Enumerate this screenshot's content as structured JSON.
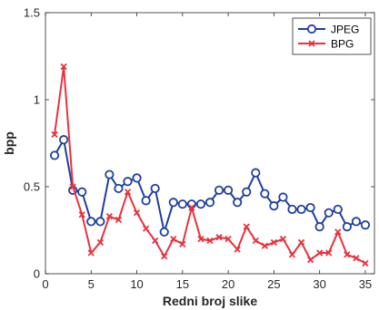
{
  "chart_data": {
    "type": "line",
    "xlabel": "Redni broj slike",
    "ylabel": "bpp",
    "xlim": [
      0,
      36
    ],
    "ylim": [
      0,
      1.5
    ],
    "x_ticks": [
      0,
      5,
      10,
      15,
      20,
      25,
      30,
      35
    ],
    "y_ticks": [
      0,
      0.5,
      1,
      1.5
    ],
    "y_tick_labels": [
      "0",
      "0.5",
      "1",
      "1.5"
    ],
    "grid": false,
    "legend_position": "top-right",
    "x": [
      1,
      2,
      3,
      4,
      5,
      6,
      7,
      8,
      9,
      10,
      11,
      12,
      13,
      14,
      15,
      16,
      17,
      18,
      19,
      20,
      21,
      22,
      23,
      24,
      25,
      26,
      27,
      28,
      29,
      30,
      31,
      32,
      33,
      34,
      35
    ],
    "series": [
      {
        "name": "JPEG",
        "color": "#1f3f9f",
        "marker": "circle",
        "values": [
          0.68,
          0.77,
          0.48,
          0.47,
          0.3,
          0.3,
          0.57,
          0.49,
          0.53,
          0.55,
          0.42,
          0.49,
          0.24,
          0.41,
          0.4,
          0.4,
          0.4,
          0.41,
          0.48,
          0.48,
          0.41,
          0.47,
          0.58,
          0.46,
          0.39,
          0.44,
          0.37,
          0.37,
          0.38,
          0.27,
          0.35,
          0.37,
          0.27,
          0.3,
          0.28
        ]
      },
      {
        "name": "BPG",
        "color": "#e8323c",
        "marker": "x",
        "values": [
          0.8,
          1.19,
          0.5,
          0.34,
          0.12,
          0.18,
          0.33,
          0.31,
          0.47,
          0.35,
          0.26,
          0.19,
          0.1,
          0.2,
          0.17,
          0.38,
          0.2,
          0.19,
          0.21,
          0.2,
          0.14,
          0.27,
          0.19,
          0.16,
          0.18,
          0.2,
          0.11,
          0.18,
          0.08,
          0.12,
          0.12,
          0.24,
          0.11,
          0.09,
          0.06
        ]
      }
    ]
  }
}
